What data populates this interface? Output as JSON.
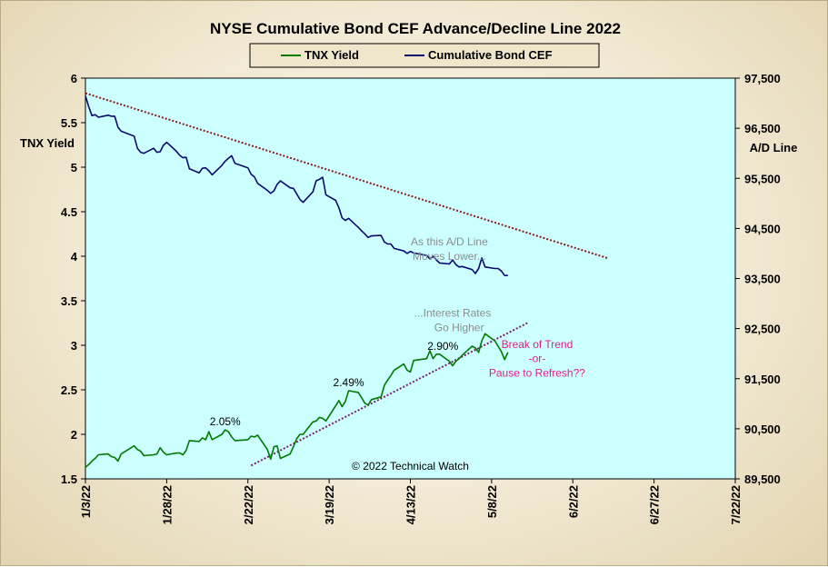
{
  "chart_data": {
    "type": "line",
    "title": "NYSE Cumulative  Bond CEF Advance/Decline  Line 2022",
    "ylabel_left": "TNX Yield",
    "ylabel_right": "A/D Line",
    "x_tick_labels": [
      "1/3/22",
      "1/28/22",
      "2/22/22",
      "3/19/22",
      "4/13/22",
      "5/8/22",
      "6/2/22",
      "6/27/22",
      "7/22/22"
    ],
    "xlim": [
      "2022-01-03",
      "2022-07-22"
    ],
    "ylim_left": [
      1.5,
      6
    ],
    "yticks_left": [
      "6",
      "5.5",
      "5",
      "4.5",
      "4",
      "3.5",
      "3",
      "2.5",
      "2",
      "1.5"
    ],
    "ylim_right": [
      89500,
      97500
    ],
    "yticks_right": [
      "97,500",
      "96,500",
      "95,500",
      "94,500",
      "93,500",
      "92,500",
      "91,500",
      "90,500",
      "89,500"
    ],
    "grid": false,
    "legend": "top-center",
    "series": [
      {
        "name": "TNX Yield",
        "axis": "left",
        "color": "#007a00",
        "x": [
          "2022-01-03",
          "2022-01-04",
          "2022-01-05",
          "2022-01-06",
          "2022-01-07",
          "2022-01-10",
          "2022-01-11",
          "2022-01-12",
          "2022-01-13",
          "2022-01-14",
          "2022-01-18",
          "2022-01-19",
          "2022-01-20",
          "2022-01-21",
          "2022-01-24",
          "2022-01-25",
          "2022-01-26",
          "2022-01-27",
          "2022-01-28",
          "2022-01-31",
          "2022-02-01",
          "2022-02-02",
          "2022-02-03",
          "2022-02-04",
          "2022-02-07",
          "2022-02-08",
          "2022-02-09",
          "2022-02-10",
          "2022-02-11",
          "2022-02-14",
          "2022-02-15",
          "2022-02-16",
          "2022-02-17",
          "2022-02-18",
          "2022-02-22",
          "2022-02-23",
          "2022-02-24",
          "2022-02-25",
          "2022-02-28",
          "2022-03-01",
          "2022-03-02",
          "2022-03-03",
          "2022-03-04",
          "2022-03-07",
          "2022-03-08",
          "2022-03-09",
          "2022-03-10",
          "2022-03-11",
          "2022-03-14",
          "2022-03-15",
          "2022-03-16",
          "2022-03-17",
          "2022-03-18",
          "2022-03-21",
          "2022-03-22",
          "2022-03-23",
          "2022-03-24",
          "2022-03-25",
          "2022-03-28",
          "2022-03-29",
          "2022-03-30",
          "2022-03-31",
          "2022-04-01",
          "2022-04-04",
          "2022-04-05",
          "2022-04-06",
          "2022-04-07",
          "2022-04-08",
          "2022-04-11",
          "2022-04-12",
          "2022-04-13",
          "2022-04-14",
          "2022-04-18",
          "2022-04-19",
          "2022-04-20",
          "2022-04-21",
          "2022-04-22",
          "2022-04-25",
          "2022-04-26",
          "2022-04-27",
          "2022-04-28",
          "2022-04-29",
          "2022-05-02",
          "2022-05-03",
          "2022-05-04",
          "2022-05-05",
          "2022-05-06",
          "2022-05-09",
          "2022-05-10",
          "2022-05-11",
          "2022-05-12",
          "2022-05-13"
        ],
        "values": [
          1.63,
          1.66,
          1.7,
          1.73,
          1.77,
          1.78,
          1.75,
          1.74,
          1.7,
          1.78,
          1.87,
          1.83,
          1.81,
          1.76,
          1.77,
          1.78,
          1.85,
          1.8,
          1.77,
          1.79,
          1.79,
          1.77,
          1.82,
          1.93,
          1.92,
          1.96,
          1.94,
          2.03,
          1.94,
          2.0,
          2.05,
          2.03,
          1.97,
          1.93,
          1.94,
          1.98,
          1.97,
          1.99,
          1.83,
          1.72,
          1.86,
          1.87,
          1.73,
          1.78,
          1.86,
          1.95,
          2.0,
          2.0,
          2.14,
          2.15,
          2.19,
          2.18,
          2.15,
          2.32,
          2.38,
          2.31,
          2.37,
          2.49,
          2.47,
          2.41,
          2.35,
          2.33,
          2.39,
          2.42,
          2.55,
          2.61,
          2.66,
          2.72,
          2.79,
          2.72,
          2.7,
          2.83,
          2.85,
          2.94,
          2.85,
          2.9,
          2.9,
          2.82,
          2.77,
          2.82,
          2.85,
          2.89,
          2.99,
          2.97,
          2.92,
          3.05,
          3.13,
          3.05,
          2.99,
          2.93,
          2.84,
          2.92
        ]
      },
      {
        "name": "Cumulative Bond CEF",
        "axis": "right",
        "color": "#0a0a6e",
        "x": [
          "2022-01-03",
          "2022-01-04",
          "2022-01-05",
          "2022-01-06",
          "2022-01-07",
          "2022-01-10",
          "2022-01-11",
          "2022-01-12",
          "2022-01-13",
          "2022-01-14",
          "2022-01-18",
          "2022-01-19",
          "2022-01-20",
          "2022-01-21",
          "2022-01-24",
          "2022-01-25",
          "2022-01-26",
          "2022-01-27",
          "2022-01-28",
          "2022-01-31",
          "2022-02-01",
          "2022-02-02",
          "2022-02-03",
          "2022-02-04",
          "2022-02-07",
          "2022-02-08",
          "2022-02-09",
          "2022-02-10",
          "2022-02-11",
          "2022-02-14",
          "2022-02-15",
          "2022-02-16",
          "2022-02-17",
          "2022-02-18",
          "2022-02-22",
          "2022-02-23",
          "2022-02-24",
          "2022-02-25",
          "2022-02-28",
          "2022-03-01",
          "2022-03-02",
          "2022-03-03",
          "2022-03-04",
          "2022-03-07",
          "2022-03-08",
          "2022-03-09",
          "2022-03-10",
          "2022-03-11",
          "2022-03-14",
          "2022-03-15",
          "2022-03-16",
          "2022-03-17",
          "2022-03-18",
          "2022-03-21",
          "2022-03-22",
          "2022-03-23",
          "2022-03-24",
          "2022-03-25",
          "2022-03-28",
          "2022-03-29",
          "2022-03-30",
          "2022-03-31",
          "2022-04-01",
          "2022-04-04",
          "2022-04-05",
          "2022-04-06",
          "2022-04-07",
          "2022-04-08",
          "2022-04-11",
          "2022-04-12",
          "2022-04-13",
          "2022-04-14",
          "2022-04-18",
          "2022-04-19",
          "2022-04-20",
          "2022-04-21",
          "2022-04-22",
          "2022-04-25",
          "2022-04-26",
          "2022-04-27",
          "2022-04-28",
          "2022-04-29",
          "2022-05-02",
          "2022-05-03",
          "2022-05-04",
          "2022-05-05",
          "2022-05-06",
          "2022-05-09",
          "2022-05-10",
          "2022-05-11",
          "2022-05-12",
          "2022-05-13"
        ],
        "values": [
          97150,
          96930,
          96750,
          96770,
          96720,
          96760,
          96740,
          96740,
          96520,
          96440,
          96340,
          96100,
          96020,
          96000,
          96100,
          96020,
          96030,
          96160,
          96220,
          96040,
          95960,
          95910,
          95920,
          95690,
          95610,
          95700,
          95710,
          95650,
          95570,
          95760,
          95840,
          95900,
          95950,
          95800,
          95710,
          95580,
          95530,
          95400,
          95260,
          95200,
          95250,
          95380,
          95450,
          95310,
          95300,
          95190,
          95080,
          95020,
          95230,
          95450,
          95480,
          95520,
          95170,
          95060,
          94910,
          94710,
          94660,
          94700,
          94520,
          94450,
          94390,
          94320,
          94350,
          94360,
          94230,
          94190,
          94190,
          94100,
          94050,
          94000,
          94040,
          94010,
          93960,
          93890,
          93940,
          93870,
          93810,
          93790,
          93870,
          93780,
          93730,
          93740,
          93680,
          93600,
          93700,
          93910,
          93730,
          93700,
          93700,
          93650,
          93560,
          93560
        ]
      }
    ],
    "trendlines": [
      {
        "name": "A/D downtrend",
        "axis": "right",
        "style": "dotted",
        "color": "#8b1a1a",
        "from": [
          "2022-01-03",
          97200
        ],
        "to": [
          "2022-06-13",
          93900
        ]
      },
      {
        "name": "yield uptrend",
        "axis": "left",
        "style": "dotted",
        "color": "#7a1f6e",
        "from": [
          "2022-02-23",
          1.65
        ],
        "to": [
          "2022-05-19",
          3.25
        ]
      }
    ],
    "annotations": [
      {
        "text": "As this A/D Line",
        "x": "2022-04-25",
        "y_left": 4.12,
        "color": "#8c8c8c",
        "anchor": "middle"
      },
      {
        "text": "Moves  Lower...",
        "x": "2022-04-25",
        "y_left": 3.96,
        "color": "#8c8c8c",
        "anchor": "middle"
      },
      {
        "text": "...Interest Rates",
        "x": "2022-04-26",
        "y_left": 3.32,
        "color": "#8c8c8c",
        "anchor": "middle"
      },
      {
        "text": "Go Higher",
        "x": "2022-04-28",
        "y_left": 3.16,
        "color": "#8c8c8c",
        "anchor": "middle"
      },
      {
        "text": "2.05%",
        "x": "2022-02-15",
        "y_left": 2.1,
        "color": "#000000",
        "anchor": "middle"
      },
      {
        "text": "2.49%",
        "x": "2022-03-25",
        "y_left": 2.54,
        "color": "#000000",
        "anchor": "middle"
      },
      {
        "text": "2.90%",
        "x": "2022-04-23",
        "y_left": 2.95,
        "color": "#000000",
        "anchor": "middle"
      },
      {
        "text": "Break of Trend",
        "x": "2022-05-22",
        "y_left": 2.97,
        "color": "#e0208c",
        "anchor": "middle"
      },
      {
        "text": "-or-",
        "x": "2022-05-22",
        "y_left": 2.81,
        "color": "#e0208c",
        "anchor": "middle"
      },
      {
        "text": "Pause to Refresh??",
        "x": "2022-05-22",
        "y_left": 2.65,
        "color": "#e0208c",
        "anchor": "middle"
      },
      {
        "text": "© 2022 Technical  Watch",
        "x": "2022-04-13",
        "y_left": 1.6,
        "color": "#000000",
        "anchor": "middle"
      }
    ]
  },
  "colors": {
    "plot_background": "#ccffff",
    "tnx_yield": "#007a00",
    "cumulative_bond_cef": "#0a0a6e",
    "ad_trendline": "#8b1a1a",
    "yield_trendline": "#7a1f6e"
  }
}
